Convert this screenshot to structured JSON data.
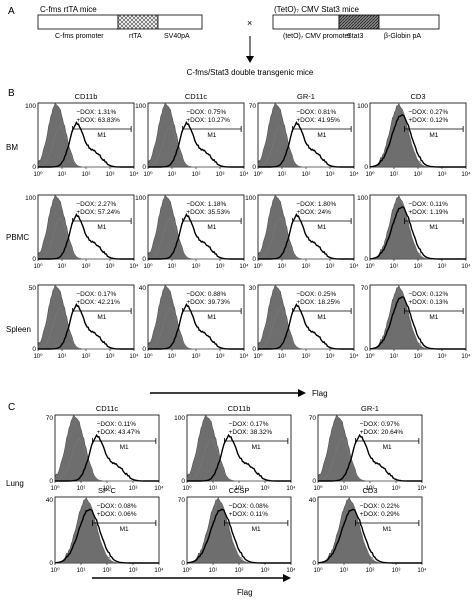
{
  "panel_a": {
    "letter": "A",
    "left_title": "C-fms rtTA mice",
    "left_segments": [
      "C-fms promoter",
      "rtTA",
      "SV40pA"
    ],
    "times": "×",
    "right_title": "(TetO)₇ CMV Stat3 mice",
    "right_segments": [
      "(tetO)₇ CMV promoter",
      "Stat3",
      "β-Globin pA"
    ],
    "result": "C-fms/Stat3 double transgenic mice"
  },
  "panel_b": {
    "letter": "B",
    "arrow_label": "Flag",
    "columns": [
      "CD11b",
      "CD11c",
      "GR-1",
      "CD3"
    ],
    "rows": [
      {
        "label": "BM",
        "ymax": [
          "100",
          "100",
          "70",
          "100"
        ],
        "minus": [
          "1.31",
          "0.75",
          "0.81",
          "0.27"
        ],
        "plus": [
          "63.83",
          "10.27",
          "41.95",
          "0.12"
        ]
      },
      {
        "label": "PBMC",
        "ymax": [
          "100",
          "100",
          "100",
          "100"
        ],
        "minus": [
          "2.27",
          "1.18",
          "1.80",
          "0.11"
        ],
        "plus": [
          "57.24",
          "35.53",
          "24",
          "1.19"
        ]
      },
      {
        "label": "Spleen",
        "ymax": [
          "50",
          "40",
          "30",
          "70"
        ],
        "minus": [
          "0.17",
          "0.88",
          "0.25",
          "0.12"
        ],
        "plus": [
          "42.21",
          "39.73",
          "18.25",
          "0.13"
        ]
      }
    ]
  },
  "panel_c": {
    "letter": "C",
    "row_label": "Lung",
    "arrow_label": "Flag",
    "row1": {
      "names": [
        "CD11c",
        "CD11b",
        "GR-1"
      ],
      "ymax": [
        "70",
        "100",
        "70"
      ],
      "minus": [
        "0.11",
        "0.17",
        "0.97"
      ],
      "plus": [
        "43.47",
        "38.32",
        "20.64"
      ]
    },
    "row2": {
      "names": [
        "SP-C",
        "CCSP",
        "CD3"
      ],
      "ymax": [
        "40",
        "70",
        "40"
      ],
      "minus": [
        "0.08",
        "0.08",
        "0.22"
      ],
      "plus": [
        "0.06",
        "0.11",
        "0.29"
      ]
    }
  },
  "labels": {
    "minus_prefix": "−DOX: ",
    "plus_prefix": "+DOX: ",
    "pct": "%",
    "gate": "M1",
    "zero": "0"
  },
  "xticks": [
    "10⁰",
    "10¹",
    "10²",
    "10³",
    "10⁴"
  ]
}
